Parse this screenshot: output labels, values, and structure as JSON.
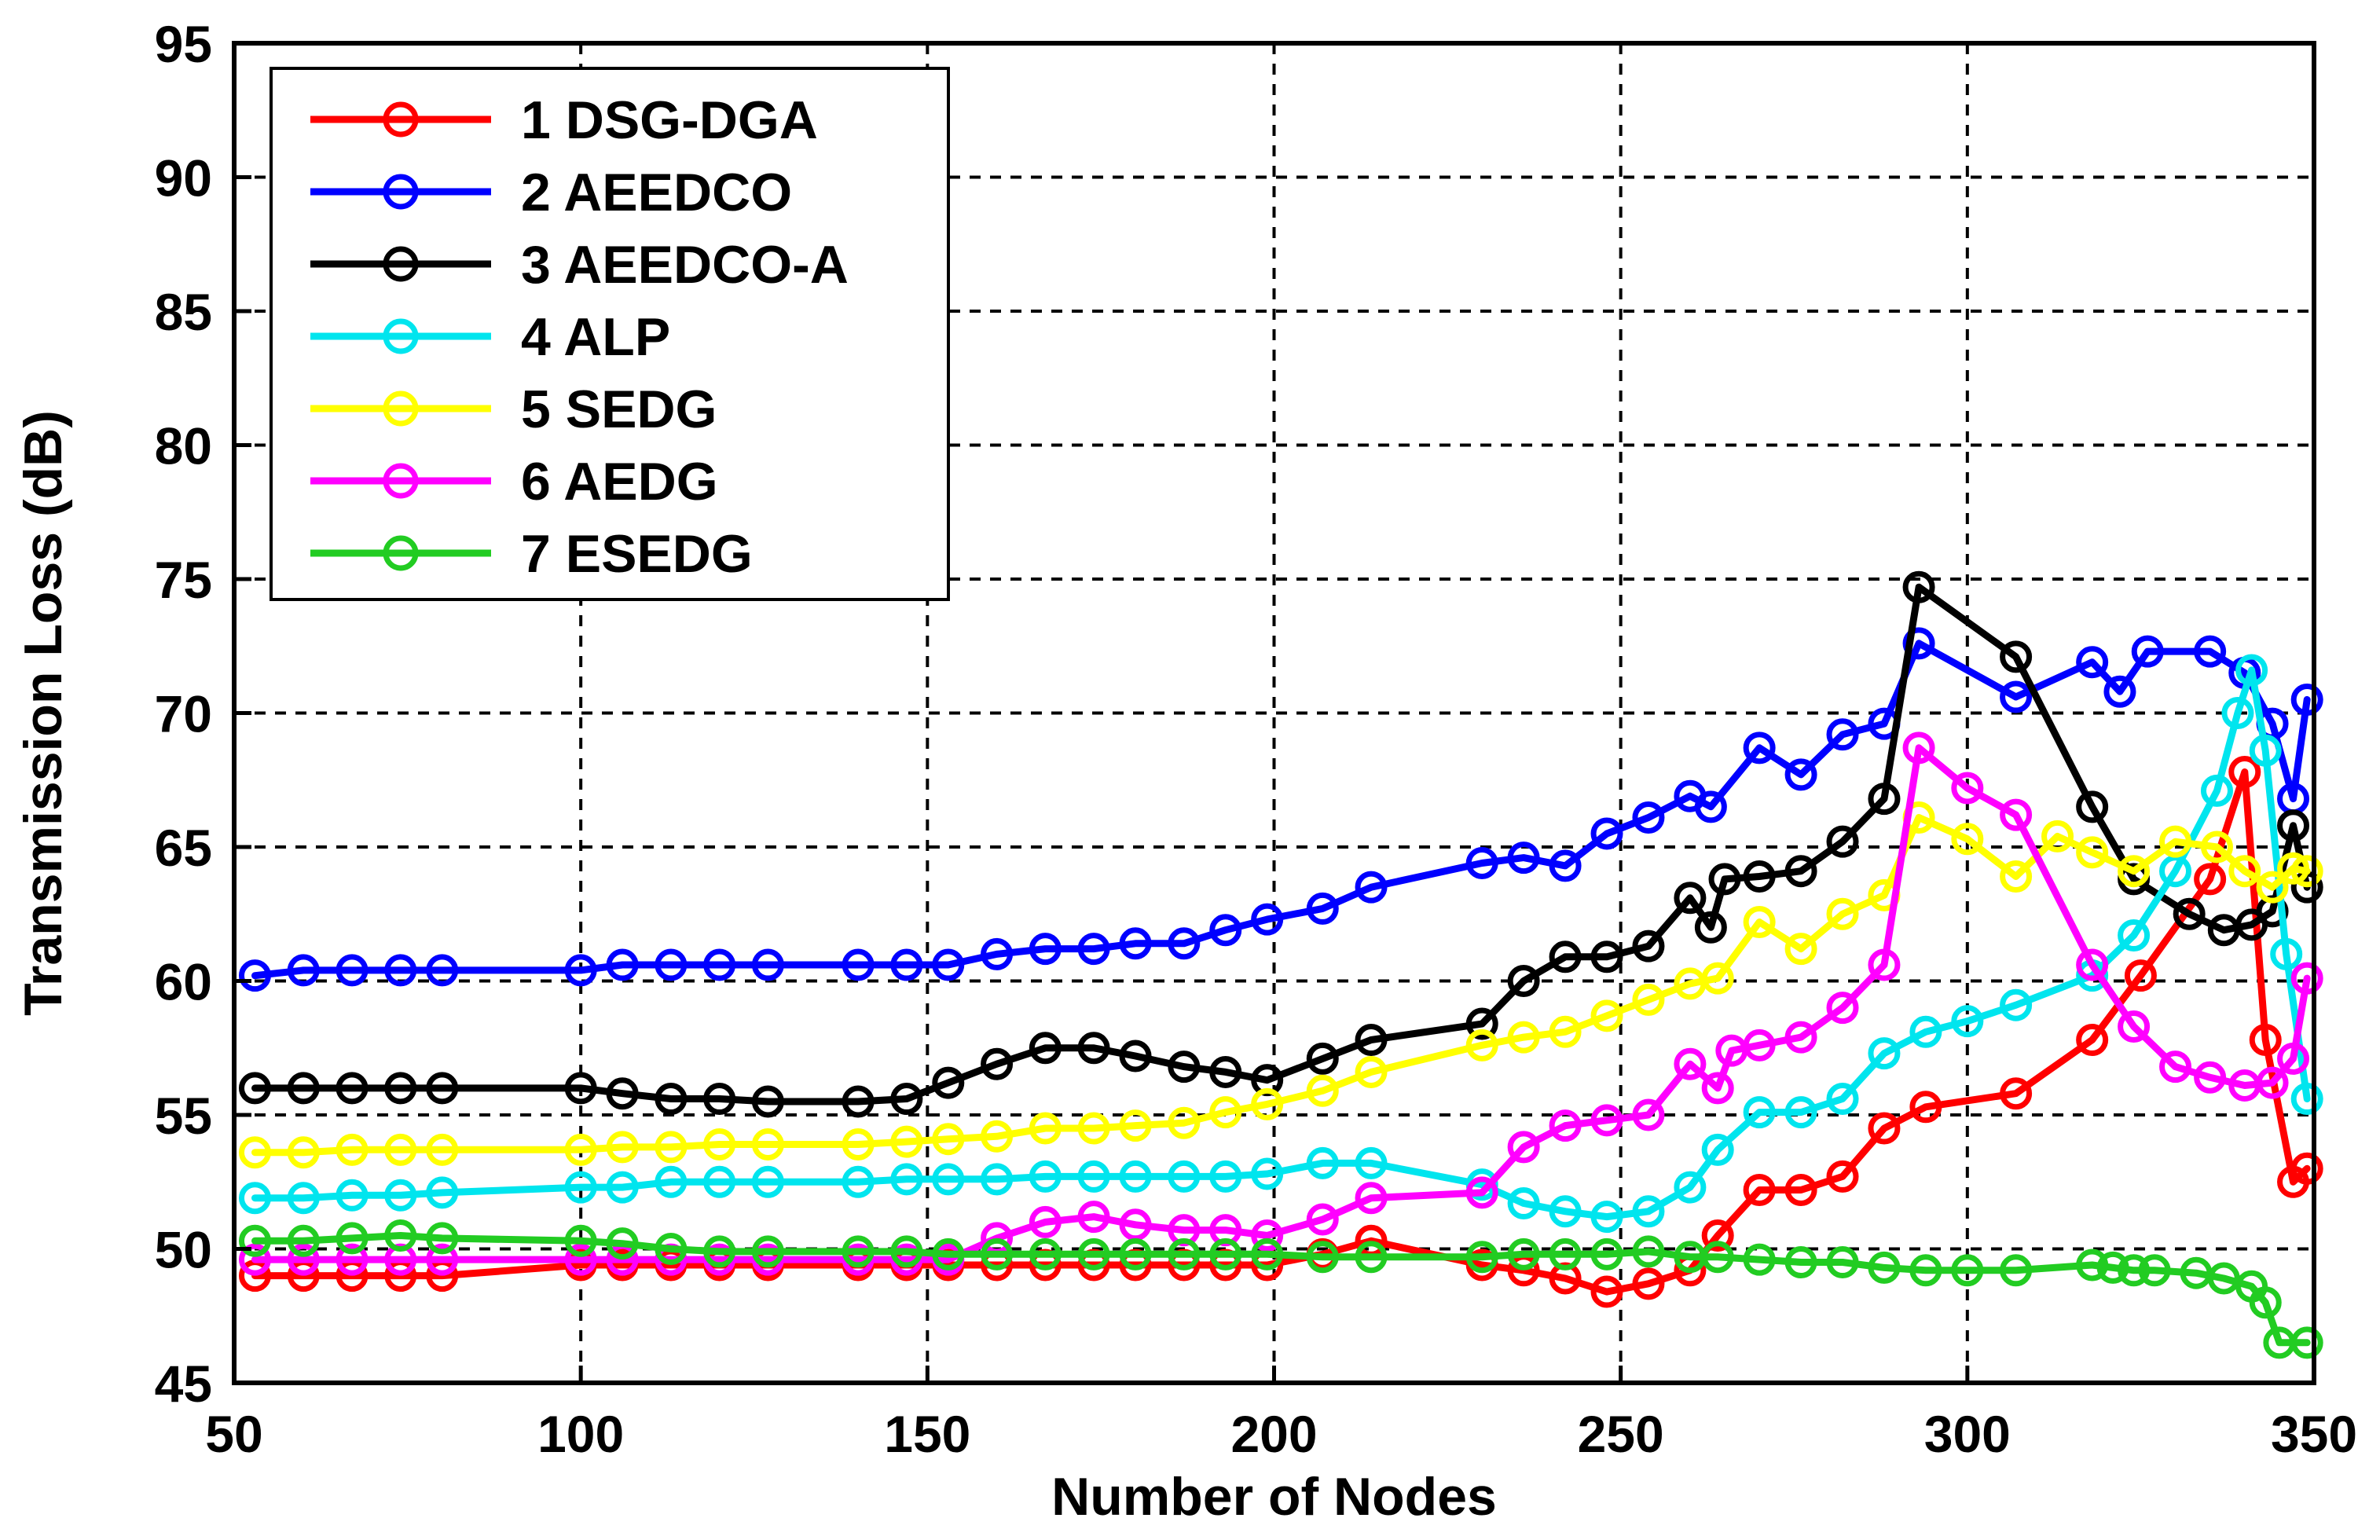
{
  "chart_data": {
    "type": "line",
    "title": "",
    "xlabel": "Number of Nodes",
    "ylabel": "Transmission Loss (dB)",
    "xlim": [
      50,
      350
    ],
    "ylim": [
      45,
      95
    ],
    "xticks": [
      50,
      100,
      150,
      200,
      250,
      300,
      350
    ],
    "yticks": [
      45,
      50,
      55,
      60,
      65,
      70,
      75,
      80,
      85,
      90,
      95
    ],
    "xtick_labels": [
      "50",
      "100",
      "150",
      "200",
      "250",
      "300",
      "350"
    ],
    "ytick_labels": [
      "45",
      "50",
      "55",
      "60",
      "65",
      "70",
      "75",
      "80",
      "85",
      "90",
      "95"
    ],
    "grid": true,
    "legend_position": "top-left",
    "series": [
      {
        "name": "1 DSG-DGA",
        "color": "#ff0000",
        "x": [
          53,
          60,
          67,
          74,
          80,
          100,
          106,
          113,
          120,
          127,
          140,
          147,
          153,
          160,
          167,
          174,
          180,
          187,
          193,
          199,
          207,
          214,
          230,
          236,
          242,
          248,
          254,
          260,
          264,
          270,
          276,
          282,
          288,
          294,
          307,
          318,
          325,
          335,
          340,
          343,
          347,
          349
        ],
        "y": [
          49,
          49,
          49,
          49,
          49,
          49.4,
          49.4,
          49.4,
          49.4,
          49.4,
          49.4,
          49.4,
          49.4,
          49.4,
          49.4,
          49.4,
          49.4,
          49.4,
          49.4,
          49.4,
          49.8,
          50.3,
          49.4,
          49.2,
          48.9,
          48.4,
          48.7,
          49.2,
          50.5,
          52.2,
          52.2,
          52.7,
          54.5,
          55.3,
          55.8,
          57.8,
          60.2,
          63.8,
          67.8,
          57.8,
          52.5,
          53
        ]
      },
      {
        "name": "2 AEEDCO",
        "color": "#0000ff",
        "x": [
          53,
          60,
          67,
          74,
          80,
          100,
          106,
          113,
          120,
          127,
          140,
          147,
          153,
          160,
          167,
          174,
          180,
          187,
          193,
          199,
          207,
          214,
          230,
          236,
          242,
          248,
          254,
          260,
          263,
          270,
          276,
          282,
          288,
          293,
          307,
          318,
          322,
          326,
          335,
          340,
          344,
          347,
          349
        ],
        "y": [
          60.2,
          60.4,
          60.4,
          60.4,
          60.4,
          60.4,
          60.6,
          60.6,
          60.6,
          60.6,
          60.6,
          60.6,
          60.6,
          61,
          61.2,
          61.2,
          61.4,
          61.4,
          61.9,
          62.3,
          62.7,
          63.5,
          64.4,
          64.6,
          64.3,
          65.5,
          66.1,
          66.9,
          66.5,
          68.7,
          67.7,
          69.2,
          69.6,
          72.6,
          70.6,
          71.9,
          70.8,
          72.3,
          72.3,
          71.5,
          69.6,
          66.8,
          70.5
        ]
      },
      {
        "name": "3 AEEDCO-A",
        "color": "#000000",
        "x": [
          53,
          60,
          67,
          74,
          80,
          100,
          106,
          113,
          120,
          127,
          140,
          147,
          153,
          160,
          167,
          174,
          180,
          187,
          193,
          199,
          207,
          214,
          230,
          236,
          242,
          248,
          254,
          260,
          263,
          265,
          270,
          276,
          282,
          288,
          293,
          307,
          318,
          324,
          332,
          337,
          341,
          344,
          347,
          349
        ],
        "y": [
          56,
          56,
          56,
          56,
          56,
          56,
          55.8,
          55.6,
          55.6,
          55.5,
          55.5,
          55.6,
          56.2,
          56.9,
          57.5,
          57.5,
          57.2,
          56.8,
          56.6,
          56.3,
          57.1,
          57.8,
          58.4,
          60,
          60.9,
          60.9,
          61.3,
          63.1,
          62,
          63.8,
          63.9,
          64.1,
          65.2,
          66.8,
          74.7,
          72.1,
          66.5,
          63.8,
          62.5,
          61.9,
          62.1,
          62.6,
          65.8,
          63.5
        ]
      },
      {
        "name": "4 ALP",
        "color": "#00e5ee",
        "x": [
          53,
          60,
          67,
          74,
          80,
          100,
          106,
          113,
          120,
          127,
          140,
          147,
          153,
          160,
          167,
          174,
          180,
          187,
          193,
          199,
          207,
          214,
          230,
          236,
          242,
          248,
          254,
          260,
          264,
          270,
          276,
          282,
          288,
          294,
          300,
          307,
          318,
          324,
          330,
          336,
          339,
          341,
          343,
          346,
          349
        ],
        "y": [
          51.9,
          51.9,
          52,
          52,
          52.1,
          52.3,
          52.3,
          52.5,
          52.5,
          52.5,
          52.5,
          52.6,
          52.6,
          52.6,
          52.7,
          52.7,
          52.7,
          52.7,
          52.7,
          52.8,
          53.2,
          53.2,
          52.4,
          51.7,
          51.4,
          51.2,
          51.4,
          52.3,
          53.7,
          55.1,
          55.1,
          55.6,
          57.3,
          58.1,
          58.5,
          59.1,
          60.2,
          61.7,
          64.1,
          67.1,
          70,
          71.6,
          68.6,
          61,
          55.6
        ]
      },
      {
        "name": "5 SEDG",
        "color": "#ffff00",
        "x": [
          53,
          60,
          67,
          74,
          80,
          100,
          106,
          113,
          120,
          127,
          140,
          147,
          153,
          160,
          167,
          174,
          180,
          187,
          193,
          199,
          207,
          214,
          230,
          236,
          242,
          248,
          254,
          260,
          264,
          270,
          276,
          282,
          288,
          293,
          300,
          307,
          313,
          318,
          324,
          330,
          336,
          340,
          344,
          347,
          349
        ],
        "y": [
          53.6,
          53.6,
          53.7,
          53.7,
          53.7,
          53.7,
          53.8,
          53.8,
          53.9,
          53.9,
          53.9,
          54,
          54.1,
          54.2,
          54.5,
          54.5,
          54.6,
          54.7,
          55.1,
          55.4,
          55.9,
          56.6,
          57.6,
          57.9,
          58.1,
          58.7,
          59.3,
          59.9,
          60.1,
          62.2,
          61.2,
          62.5,
          63.2,
          66.1,
          65.3,
          63.9,
          65.4,
          64.8,
          64.1,
          65.2,
          65,
          64.1,
          63.5,
          64.2,
          64.1
        ]
      },
      {
        "name": "6 AEDG",
        "color": "#ff00ff",
        "x": [
          53,
          60,
          67,
          74,
          80,
          100,
          106,
          113,
          120,
          127,
          140,
          147,
          153,
          160,
          167,
          174,
          180,
          187,
          193,
          199,
          207,
          214,
          230,
          236,
          242,
          248,
          254,
          260,
          264,
          266,
          270,
          276,
          282,
          288,
          293,
          300,
          307,
          318,
          324,
          330,
          335,
          340,
          344,
          347,
          349
        ],
        "y": [
          49.6,
          49.6,
          49.6,
          49.6,
          49.6,
          49.6,
          49.6,
          49.6,
          49.6,
          49.6,
          49.6,
          49.6,
          49.6,
          50.4,
          51,
          51.2,
          50.9,
          50.7,
          50.7,
          50.5,
          51.1,
          51.9,
          52.1,
          53.8,
          54.6,
          54.8,
          55,
          56.9,
          56,
          57.4,
          57.6,
          57.9,
          59,
          60.6,
          68.7,
          67.2,
          66.2,
          60.6,
          58.3,
          56.8,
          56.4,
          56.1,
          56.2,
          57.1,
          60.1
        ]
      },
      {
        "name": "7 ESEDG",
        "color": "#22cc22",
        "x": [
          53,
          60,
          67,
          74,
          80,
          100,
          106,
          113,
          120,
          127,
          140,
          147,
          153,
          160,
          167,
          174,
          180,
          187,
          193,
          199,
          207,
          214,
          230,
          236,
          242,
          248,
          254,
          260,
          264,
          270,
          276,
          282,
          288,
          294,
          300,
          307,
          318,
          321,
          324,
          327,
          333,
          337,
          341,
          343,
          345,
          349
        ],
        "y": [
          50.3,
          50.3,
          50.4,
          50.5,
          50.4,
          50.3,
          50.2,
          50,
          49.9,
          49.9,
          49.9,
          49.9,
          49.8,
          49.8,
          49.8,
          49.8,
          49.8,
          49.8,
          49.8,
          49.8,
          49.7,
          49.7,
          49.7,
          49.8,
          49.8,
          49.8,
          49.9,
          49.7,
          49.7,
          49.6,
          49.5,
          49.5,
          49.3,
          49.2,
          49.2,
          49.2,
          49.4,
          49.3,
          49.2,
          49.2,
          49.1,
          48.9,
          48.6,
          48,
          46.5,
          46.5
        ]
      }
    ]
  }
}
